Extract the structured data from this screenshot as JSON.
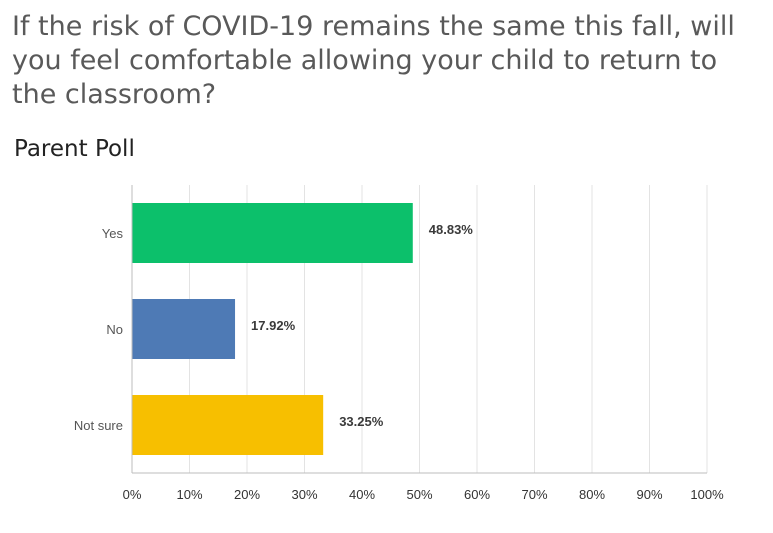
{
  "title": "If the risk of COVID-19 remains the same this fall, will you feel comfortable allowing your child to return to the classroom?",
  "subtitle": "Parent Poll",
  "chart_data": {
    "type": "bar",
    "orientation": "horizontal",
    "categories": [
      "Yes",
      "No",
      "Not sure"
    ],
    "values": [
      48.83,
      17.92,
      33.25
    ],
    "value_labels": [
      "48.83%",
      "17.92%",
      "33.25%"
    ],
    "colors": [
      "#0cc06b",
      "#4e7ab5",
      "#f7bf00"
    ],
    "xlim": [
      0,
      100
    ],
    "x_ticks": [
      "0%",
      "10%",
      "20%",
      "30%",
      "40%",
      "50%",
      "60%",
      "70%",
      "80%",
      "90%",
      "100%"
    ],
    "grid": true,
    "title": "If the risk of COVID-19 remains the same this fall, will you feel comfortable allowing your child to return to the classroom?",
    "xlabel": "",
    "ylabel": ""
  }
}
